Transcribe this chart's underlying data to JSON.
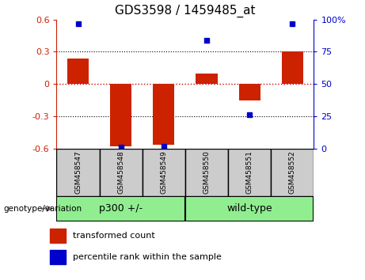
{
  "title": "GDS3598 / 1459485_at",
  "samples": [
    "GSM458547",
    "GSM458548",
    "GSM458549",
    "GSM458550",
    "GSM458551",
    "GSM458552"
  ],
  "red_bars": [
    0.24,
    -0.58,
    -0.565,
    0.1,
    -0.155,
    0.305
  ],
  "blue_dots": [
    97,
    1.0,
    1.5,
    84,
    26,
    97
  ],
  "ylim_left": [
    -0.6,
    0.6
  ],
  "ylim_right": [
    0,
    100
  ],
  "yticks_left": [
    -0.6,
    -0.3,
    0.0,
    0.3,
    0.6
  ],
  "ytick_labels_left": [
    "-0.6",
    "-0.3",
    "0",
    "0.3",
    "0.6"
  ],
  "yticks_right": [
    0,
    25,
    50,
    75,
    100
  ],
  "ytick_labels_right": [
    "0",
    "25",
    "50",
    "75",
    "100%"
  ],
  "group1_label": "p300 +/-",
  "group2_label": "wild-type",
  "group_label_text": "genotype/variation",
  "group_color": "#90ee90",
  "bar_color": "#cc2200",
  "dot_color": "#0000cc",
  "hline_color": "#cc0000",
  "grid_color": "black",
  "sample_bg_color": "#cccccc",
  "legend_items": [
    {
      "color": "#cc2200",
      "label": "transformed count"
    },
    {
      "color": "#0000cc",
      "label": "percentile rank within the sample"
    }
  ],
  "bar_width": 0.5
}
